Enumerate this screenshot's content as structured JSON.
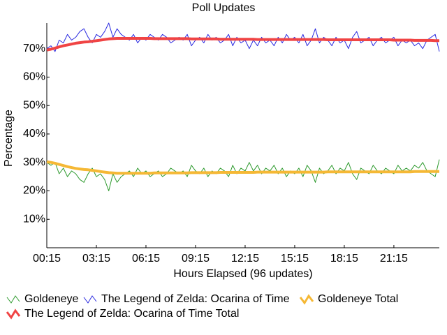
{
  "chart_data": {
    "type": "line",
    "title": "Poll Updates",
    "xlabel": "Hours Elapsed (96 updates)",
    "ylabel": "Percentage",
    "categories": [
      "00:15",
      null,
      null,
      null,
      null,
      null,
      null,
      null,
      null,
      null,
      null,
      null,
      "03:15",
      null,
      null,
      null,
      null,
      null,
      null,
      null,
      null,
      null,
      null,
      null,
      "06:15",
      null,
      null,
      null,
      null,
      null,
      null,
      null,
      null,
      null,
      null,
      null,
      "09:15",
      null,
      null,
      null,
      null,
      null,
      null,
      null,
      null,
      null,
      null,
      null,
      "12:15",
      null,
      null,
      null,
      null,
      null,
      null,
      null,
      null,
      null,
      null,
      null,
      "15:15",
      null,
      null,
      null,
      null,
      null,
      null,
      null,
      null,
      null,
      null,
      null,
      "18:15",
      null,
      null,
      null,
      null,
      null,
      null,
      null,
      null,
      null,
      null,
      null,
      "21:15",
      null,
      null,
      null,
      null,
      null,
      null,
      null,
      null,
      null,
      null,
      null
    ],
    "ylim": [
      0,
      79
    ],
    "yticks": [
      {
        "value": 10,
        "label": "10%"
      },
      {
        "value": 20,
        "label": "20%"
      },
      {
        "value": 30,
        "label": "30%"
      },
      {
        "value": 40,
        "label": "40%"
      },
      {
        "value": 50,
        "label": "50%"
      },
      {
        "value": 60,
        "label": "60%"
      },
      {
        "value": 70,
        "label": "70%"
      }
    ],
    "series": [
      {
        "name": "Goldeneye",
        "color": "#2e9a2e",
        "width": 1,
        "values": [
          30,
          29,
          30,
          26,
          28,
          25,
          27,
          26,
          24,
          23,
          26,
          28,
          25,
          26,
          24,
          20,
          26,
          23,
          25,
          26,
          27,
          25,
          28,
          26,
          27,
          25,
          26,
          27,
          25,
          26,
          28,
          27,
          26,
          27,
          25,
          29,
          27,
          26,
          28,
          25,
          27,
          26,
          28,
          27,
          25,
          29,
          26,
          28,
          27,
          30,
          27,
          29,
          26,
          28,
          27,
          29,
          26,
          28,
          25,
          27,
          26,
          28,
          25,
          29,
          27,
          23,
          28,
          26,
          27,
          29,
          26,
          28,
          27,
          30,
          26,
          24,
          28,
          27,
          26,
          29,
          27,
          26,
          28,
          27,
          26,
          29,
          27,
          28,
          27,
          29,
          28,
          30,
          27,
          26,
          25,
          31
        ]
      },
      {
        "name": "The Legend of Zelda: Ocarina of Time",
        "color": "#2828e0",
        "width": 1,
        "values": [
          70,
          71,
          69,
          73,
          72,
          75,
          73,
          74,
          76,
          77,
          74,
          72,
          75,
          74,
          76,
          79,
          74,
          77,
          75,
          74,
          73,
          75,
          72,
          74,
          73,
          75,
          74,
          73,
          75,
          74,
          72,
          73,
          74,
          73,
          75,
          71,
          73,
          74,
          72,
          75,
          73,
          74,
          72,
          73,
          75,
          71,
          74,
          72,
          73,
          70,
          73,
          71,
          74,
          72,
          73,
          71,
          74,
          72,
          75,
          73,
          74,
          72,
          75,
          71,
          73,
          77,
          72,
          74,
          73,
          71,
          74,
          72,
          73,
          70,
          74,
          76,
          72,
          73,
          74,
          71,
          73,
          74,
          72,
          73,
          74,
          71,
          73,
          72,
          73,
          71,
          72,
          70,
          73,
          74,
          75,
          69
        ]
      },
      {
        "name": "Goldeneye Total",
        "color": "#f5b835",
        "width": 4,
        "values": [
          30.2,
          30,
          29.7,
          29.3,
          28.9,
          28.5,
          28.2,
          27.9,
          27.7,
          27.5,
          27.4,
          27.2,
          27,
          26.8,
          26.6,
          26.4,
          26.3,
          26.2,
          26.2,
          26.2,
          26.2,
          26.2,
          26.2,
          26.2,
          26.2,
          26.2,
          26.3,
          26.3,
          26.3,
          26.3,
          26.3,
          26.3,
          26.3,
          26.3,
          26.3,
          26.4,
          26.4,
          26.4,
          26.4,
          26.4,
          26.4,
          26.4,
          26.5,
          26.5,
          26.5,
          26.5,
          26.5,
          26.5,
          26.5,
          26.5,
          26.5,
          26.6,
          26.6,
          26.6,
          26.6,
          26.6,
          26.6,
          26.6,
          26.6,
          26.6,
          26.6,
          26.6,
          26.6,
          26.6,
          26.6,
          26.6,
          26.6,
          26.6,
          26.7,
          26.7,
          26.7,
          26.7,
          26.7,
          26.7,
          26.7,
          26.7,
          26.7,
          26.7,
          26.7,
          26.7,
          26.7,
          26.7,
          26.7,
          26.7,
          26.7,
          26.7,
          26.7,
          26.7,
          26.7,
          26.8,
          26.8,
          26.8,
          26.8,
          26.8,
          26.8,
          26.8
        ]
      },
      {
        "name": "The Legend of Zelda: Ocarina of Time Total",
        "color": "#f04444",
        "width": 4,
        "values": [
          69.5,
          69.8,
          70.2,
          70.6,
          71,
          71.3,
          71.6,
          71.9,
          72.1,
          72.3,
          72.4,
          72.6,
          72.8,
          73,
          73.2,
          73.4,
          73.5,
          73.6,
          73.6,
          73.6,
          73.6,
          73.6,
          73.6,
          73.6,
          73.6,
          73.6,
          73.5,
          73.5,
          73.5,
          73.5,
          73.5,
          73.5,
          73.5,
          73.5,
          73.5,
          73.4,
          73.4,
          73.4,
          73.4,
          73.4,
          73.4,
          73.4,
          73.3,
          73.3,
          73.3,
          73.3,
          73.3,
          73.3,
          73.3,
          73.3,
          73.3,
          73.2,
          73.2,
          73.2,
          73.2,
          73.2,
          73.2,
          73.2,
          73.2,
          73.2,
          73.2,
          73.2,
          73.2,
          73.2,
          73.2,
          73.2,
          73.2,
          73.2,
          73.1,
          73.1,
          73.1,
          73.1,
          73.1,
          73.1,
          73.1,
          73.1,
          73.1,
          73.1,
          73.1,
          73.1,
          73.1,
          73.1,
          73.1,
          73.1,
          73,
          73,
          73,
          73,
          73,
          72.9,
          72.9,
          72.9,
          72.9,
          72.9,
          72.8,
          72.8
        ]
      }
    ]
  }
}
